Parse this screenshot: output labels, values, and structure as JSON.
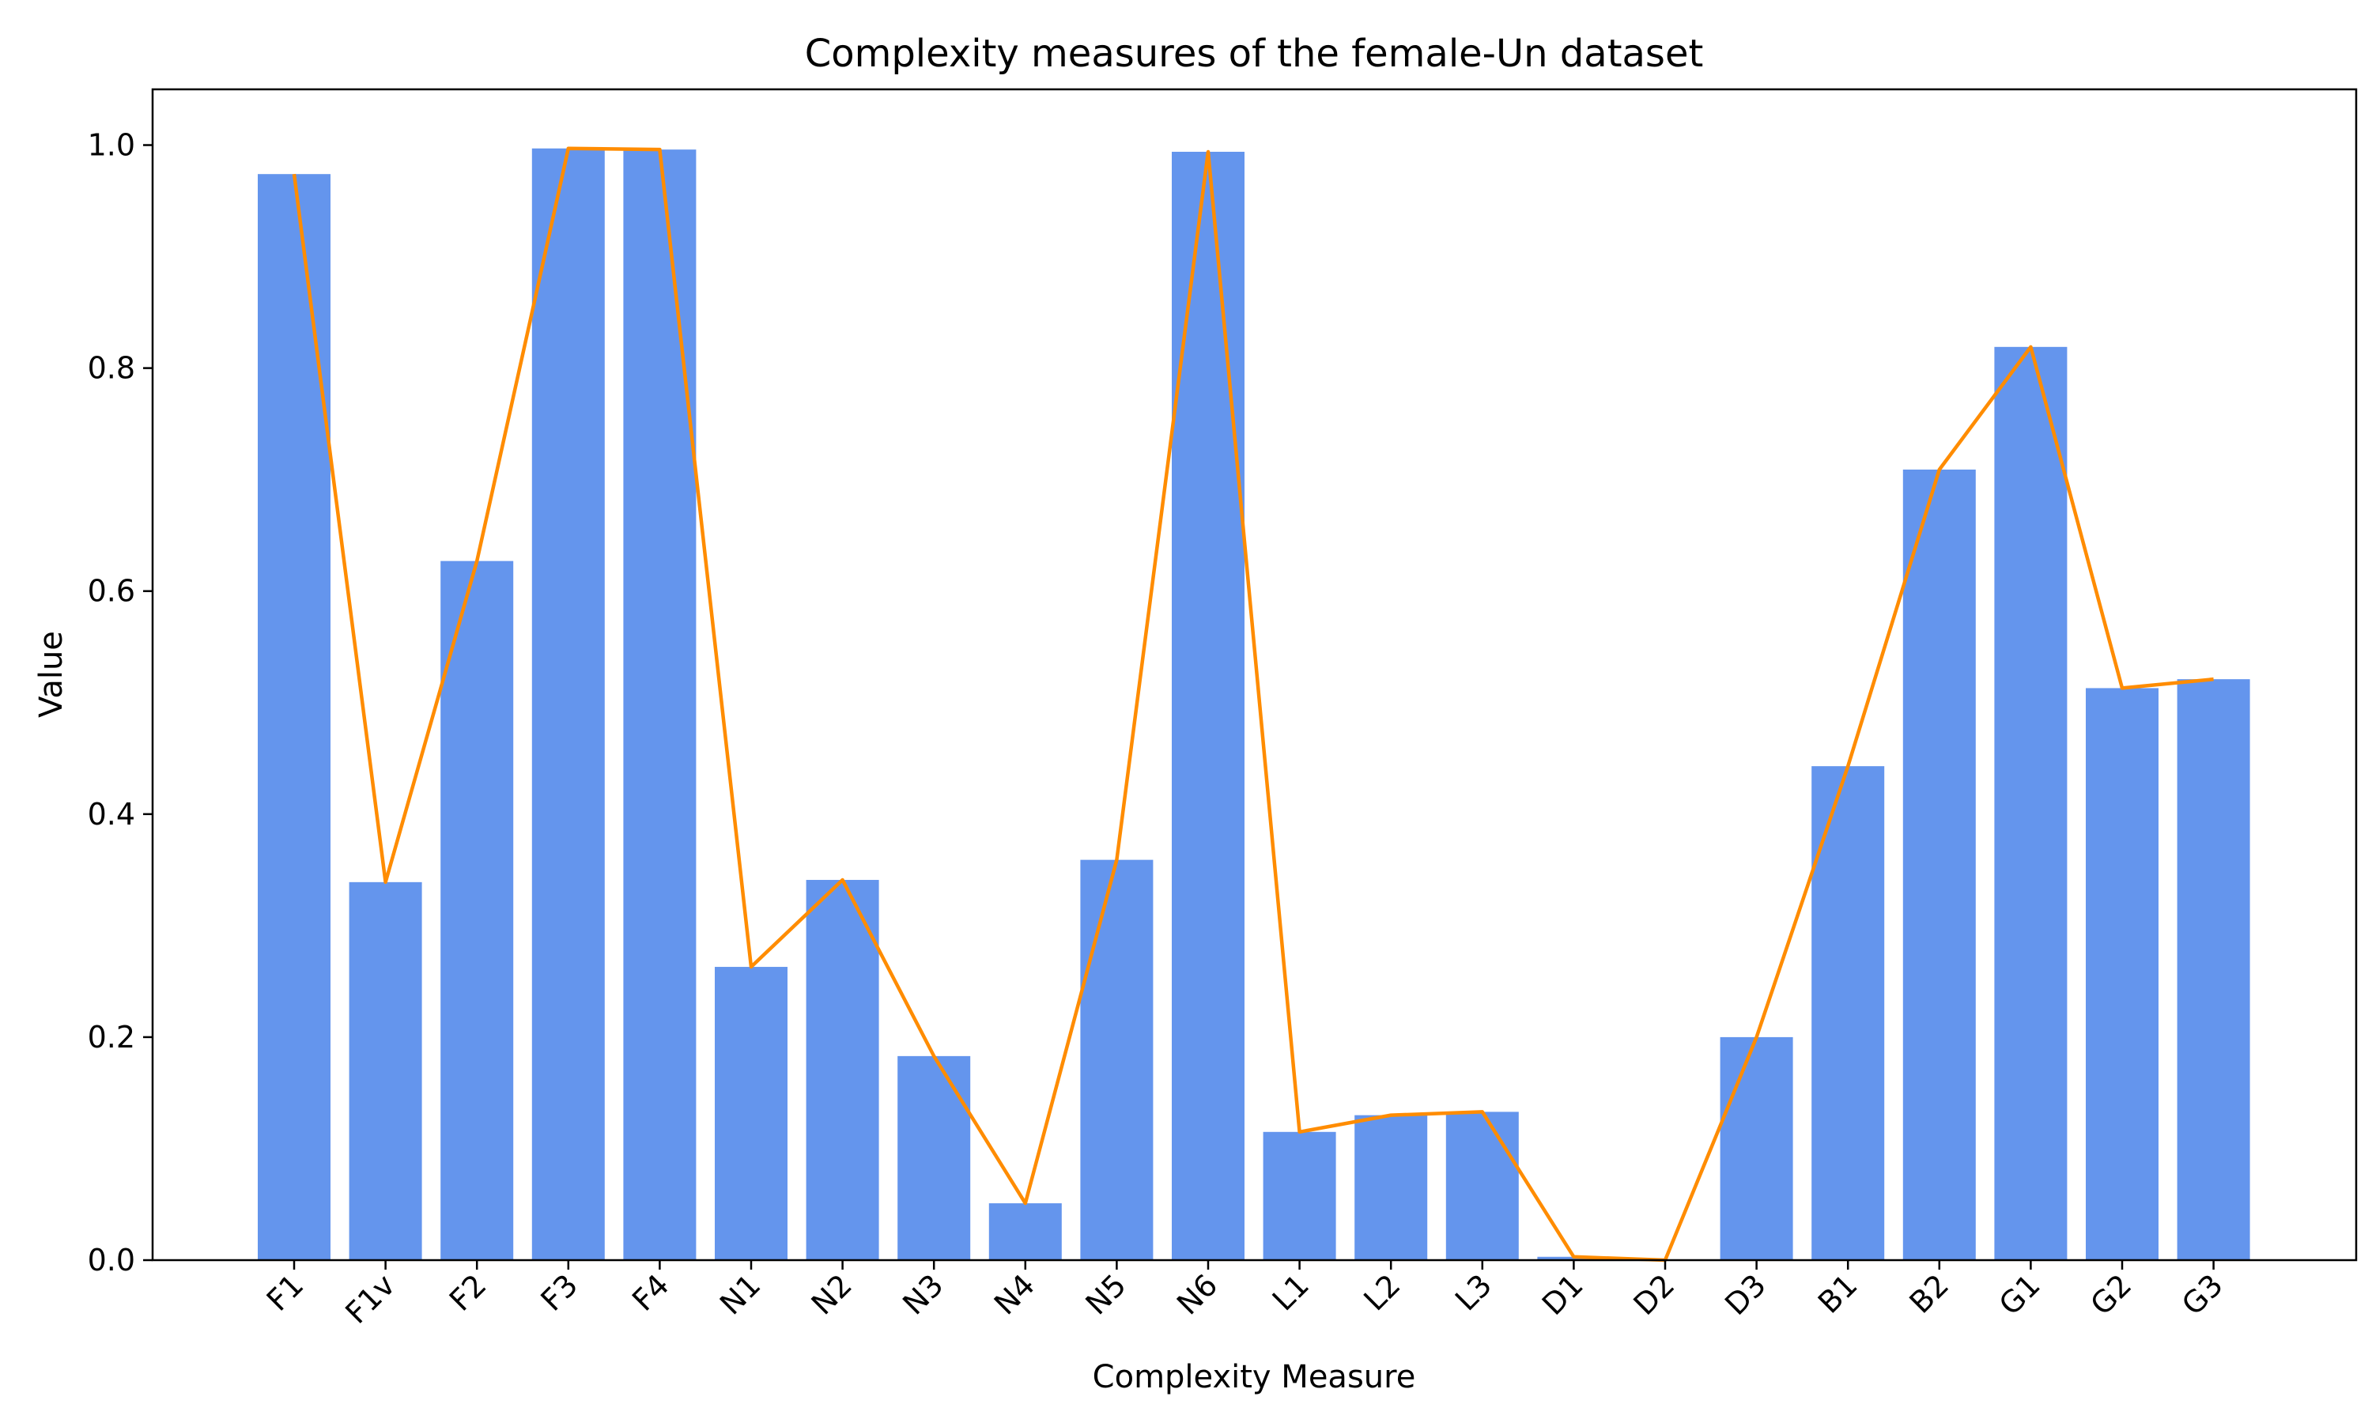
{
  "chart_data": {
    "type": "bar",
    "title": "Complexity measures of the female-Un dataset",
    "xlabel": "Complexity Measure",
    "ylabel": "Value",
    "ylim": [
      0,
      1.05
    ],
    "yticks": [
      "0.0",
      "0.2",
      "0.4",
      "0.6",
      "0.8",
      "1.0"
    ],
    "grid": false,
    "categories": [
      "F1",
      "F1v",
      "F2",
      "F3",
      "F4",
      "N1",
      "N2",
      "N3",
      "N4",
      "N5",
      "N6",
      "L1",
      "L2",
      "L3",
      "D1",
      "D2",
      "D3",
      "B1",
      "B2",
      "G1",
      "G2",
      "G3"
    ],
    "values": [
      0.974,
      0.339,
      0.627,
      0.997,
      0.996,
      0.263,
      0.341,
      0.183,
      0.051,
      0.359,
      0.994,
      0.115,
      0.13,
      0.133,
      0.003,
      0.0,
      0.2,
      0.443,
      0.709,
      0.819,
      0.513,
      0.521
    ],
    "bar_color": "#6495ED",
    "line_color": "#FF8C00",
    "line_overlay": true
  }
}
